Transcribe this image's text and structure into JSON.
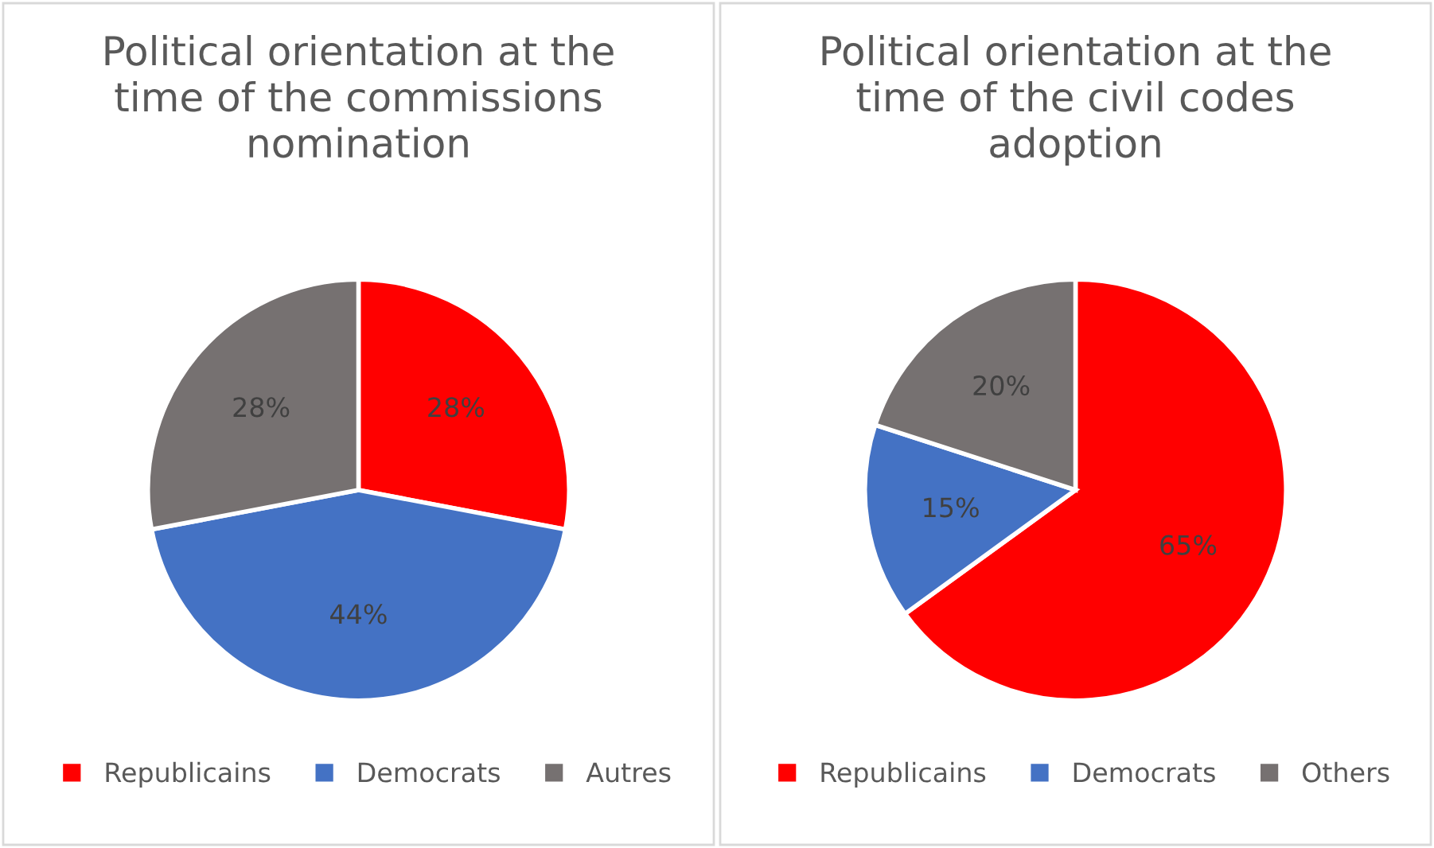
{
  "chart_data": [
    {
      "type": "pie",
      "title": "Political orientation at the time of the commissions nomination",
      "categories": [
        "Republicains",
        "Democrats",
        "Autres"
      ],
      "values": [
        28,
        44,
        28
      ],
      "value_labels": [
        "28%",
        "44%",
        "28%"
      ],
      "colors": [
        "#ff0000",
        "#4472c4",
        "#767171"
      ],
      "legend": "bottom"
    },
    {
      "type": "pie",
      "title": "Political orientation at the time of the civil codes adoption",
      "categories": [
        "Republicains",
        "Democrats",
        "Others"
      ],
      "values": [
        65,
        15,
        20
      ],
      "value_labels": [
        "65%",
        "15%",
        "20%"
      ],
      "colors": [
        "#ff0000",
        "#4472c4",
        "#767171"
      ],
      "legend": "bottom"
    }
  ]
}
